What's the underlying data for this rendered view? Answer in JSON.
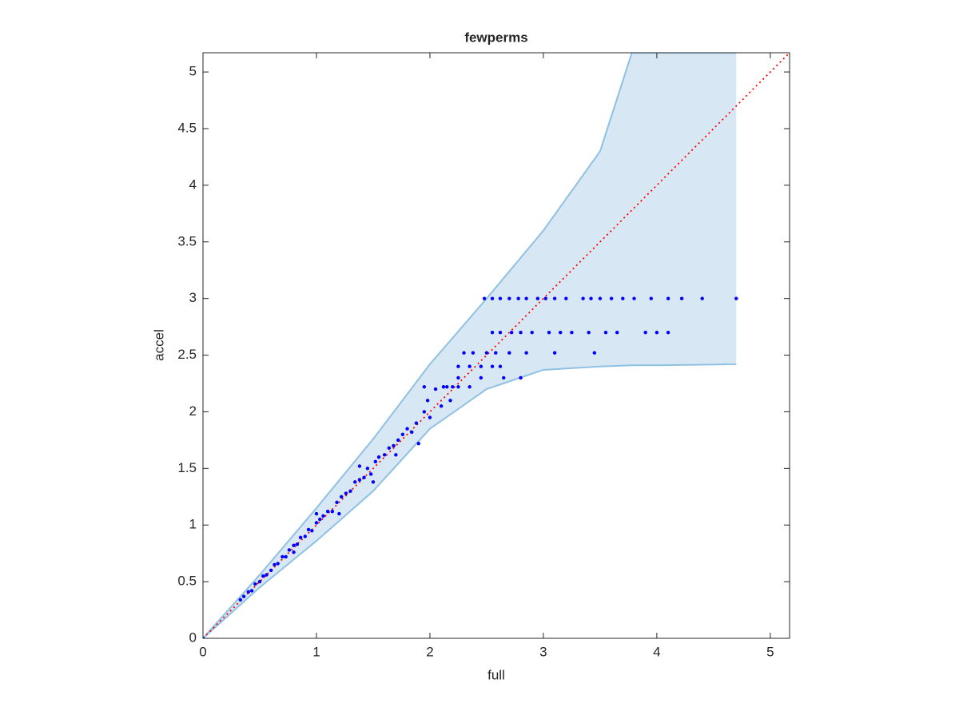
{
  "chart_data": {
    "type": "scatter",
    "title": "fewperms",
    "xlabel": "full",
    "ylabel": "accel",
    "xlim": [
      0,
      5.17
    ],
    "ylim": [
      0,
      5.17
    ],
    "xticks": [
      0,
      1,
      2,
      3,
      4,
      5
    ],
    "yticks": [
      0,
      0.5,
      1,
      1.5,
      2,
      2.5,
      3,
      3.5,
      4,
      4.5,
      5
    ],
    "band": {
      "color": "#d7e7f3",
      "edge_color": "#8fc1e3",
      "x": [
        0,
        0.5,
        1,
        1.5,
        2,
        2.5,
        3,
        3.5,
        3.78,
        4,
        4.7
      ],
      "upper": [
        0,
        0.56,
        1.15,
        1.76,
        2.42,
        3.0,
        3.6,
        4.3,
        5.17,
        5.17,
        5.17
      ],
      "lower": [
        0,
        0.45,
        0.86,
        1.3,
        1.85,
        2.2,
        2.37,
        2.4,
        2.41,
        2.41,
        2.42
      ]
    },
    "reference_line": {
      "color": "#ff0000",
      "x": [
        0,
        5.17
      ],
      "y": [
        0,
        5.17
      ]
    },
    "points": {
      "color": "#0000ff",
      "x": [
        0,
        0.33,
        0.36,
        0.4,
        0.43,
        0.46,
        0.5,
        0.53,
        0.56,
        0.6,
        0.63,
        0.66,
        0.7,
        0.73,
        0.76,
        0.8,
        0.83,
        0.86,
        0.9,
        0.93,
        0.96,
        1.0,
        1.03,
        1.06,
        1.1,
        1.14,
        1.18,
        1.22,
        1.26,
        1.3,
        1.34,
        1.38,
        1.42,
        1.45,
        1.48,
        1.52,
        1.55,
        1.6,
        1.64,
        1.68,
        1.72,
        1.76,
        1.8,
        1.84,
        1.88,
        1.9,
        1.95,
        1.98,
        2.0,
        2.05,
        2.1,
        2.12,
        2.18,
        2.2,
        2.25,
        1.38,
        1.0,
        0.8,
        1.5,
        1.7,
        1.2,
        1.95,
        2.48,
        2.55,
        2.62,
        2.7,
        2.78,
        2.85,
        2.95,
        3.02,
        3.1,
        3.2,
        3.35,
        3.42,
        3.5,
        3.6,
        3.7,
        3.8,
        3.95,
        4.1,
        4.22,
        4.4,
        4.7,
        2.55,
        2.62,
        2.72,
        2.8,
        2.9,
        3.05,
        3.15,
        3.25,
        3.4,
        3.55,
        3.65,
        3.9,
        4.0,
        4.1,
        2.3,
        2.38,
        2.5,
        2.58,
        2.7,
        2.85,
        3.1,
        3.45,
        2.25,
        2.35,
        2.45,
        2.55,
        2.62,
        2.45,
        2.65,
        2.8,
        2.15,
        2.25,
        2.35
      ],
      "y": [
        0,
        0.34,
        0.37,
        0.41,
        0.42,
        0.48,
        0.5,
        0.55,
        0.56,
        0.6,
        0.65,
        0.66,
        0.72,
        0.72,
        0.78,
        0.82,
        0.83,
        0.89,
        0.9,
        0.96,
        0.95,
        1.02,
        1.05,
        1.08,
        1.12,
        1.12,
        1.2,
        1.25,
        1.28,
        1.3,
        1.38,
        1.4,
        1.42,
        1.5,
        1.45,
        1.56,
        1.6,
        1.62,
        1.68,
        1.7,
        1.75,
        1.8,
        1.85,
        1.82,
        1.9,
        1.72,
        2.0,
        2.1,
        1.95,
        2.2,
        2.05,
        2.22,
        2.1,
        2.22,
        2.3,
        1.52,
        1.1,
        0.76,
        1.38,
        1.62,
        1.1,
        2.22,
        3,
        3,
        3,
        3,
        3,
        3,
        3,
        3,
        3,
        3,
        3,
        3,
        3,
        3,
        3,
        3,
        3,
        3,
        3,
        3,
        3,
        2.7,
        2.7,
        2.7,
        2.7,
        2.7,
        2.7,
        2.7,
        2.7,
        2.7,
        2.7,
        2.7,
        2.7,
        2.7,
        2.7,
        2.52,
        2.52,
        2.52,
        2.52,
        2.52,
        2.52,
        2.52,
        2.52,
        2.4,
        2.4,
        2.4,
        2.4,
        2.4,
        2.3,
        2.3,
        2.3,
        2.22,
        2.22,
        2.22
      ]
    }
  }
}
